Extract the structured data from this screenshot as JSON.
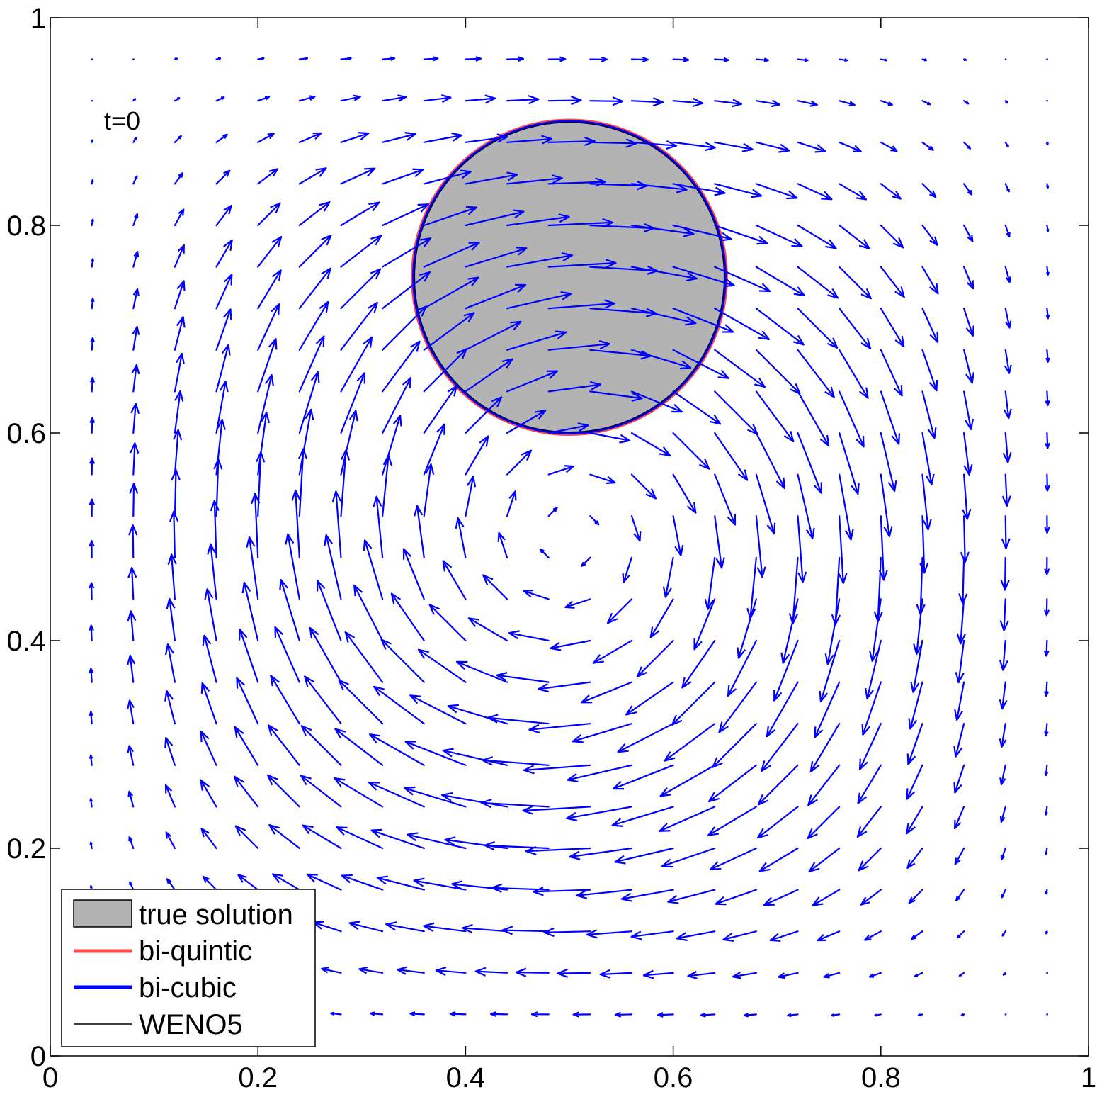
{
  "chart_data": {
    "type": "quiver",
    "title": "",
    "xlabel": "",
    "ylabel": "",
    "xlim": [
      0,
      1
    ],
    "ylim": [
      0,
      1
    ],
    "xticks": [
      "0",
      "0.2",
      "0.4",
      "0.6",
      "0.8",
      "1"
    ],
    "xtick_values": [
      0,
      0.2,
      0.4,
      0.6,
      0.8,
      1
    ],
    "yticks": [
      "0",
      "0.2",
      "0.4",
      "0.6",
      "0.8",
      "1"
    ],
    "ytick_values": [
      0,
      0.2,
      0.4,
      0.6,
      0.8,
      1
    ],
    "grid": false,
    "annotation": "t=0",
    "circle": {
      "cx": 0.5,
      "cy": 0.75,
      "r": 0.15
    },
    "vector_field": {
      "description_of_grid": "24 x 24 arrows, x and y from 0.04 to 0.96, single vortex",
      "x_start": 0.04,
      "x_step": 0.04,
      "nx": 24,
      "y_start": 0.04,
      "y_step": 0.04,
      "ny": 24,
      "color": "#0000ff"
    },
    "series": [
      {
        "name": "true solution",
        "kind": "patch",
        "color": "#b3b3b3"
      },
      {
        "name": "bi-quintic",
        "kind": "line",
        "color": "#ff4a4a"
      },
      {
        "name": "bi-cubic",
        "kind": "line",
        "color": "#0000ff"
      },
      {
        "name": "WENO5",
        "kind": "line",
        "color": "#000000"
      }
    ],
    "legend_position": "bottom-left"
  }
}
